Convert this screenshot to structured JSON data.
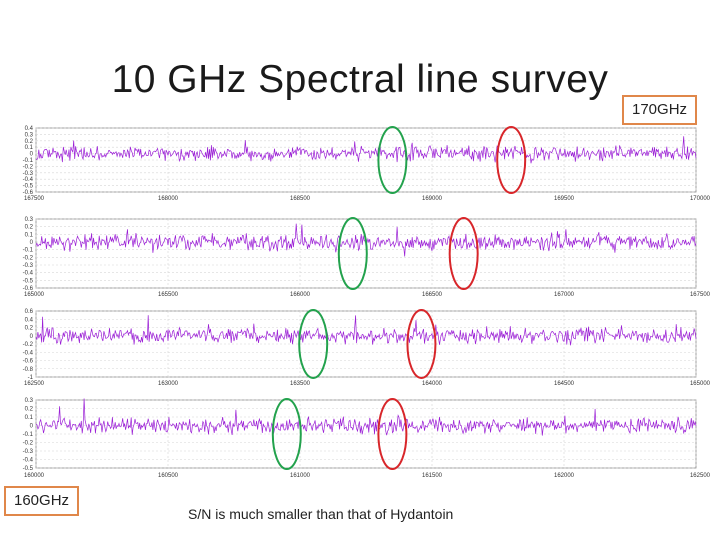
{
  "header": {
    "title": "10 GHz Spectral line survey"
  },
  "labels": {
    "top_right": "170GHz",
    "bottom_left": "160GHz"
  },
  "note": "S/N is much smaller than that of Hydantoin",
  "colors": {
    "trace": "#9b1fd6",
    "circle_green": "#23a24d",
    "circle_red": "#d8262a",
    "tag_border": "#e0874a"
  },
  "chart_data": [
    {
      "type": "line",
      "xlim": [
        167500,
        170000
      ],
      "x_ticks": [
        "167500",
        "168000",
        "168500",
        "169000",
        "169500",
        "170000"
      ],
      "ylim": [
        -0.6,
        0.4
      ],
      "y_ticks": [
        "0.4",
        "0.3",
        "0.2",
        "0.1",
        "0",
        "-0.1",
        "-0.2",
        "-0.3",
        "-0.4",
        "-0.5",
        "-0.6"
      ],
      "grid": true,
      "circles": [
        {
          "color": "green",
          "x": 168850
        },
        {
          "color": "red",
          "x": 169300
        }
      ]
    },
    {
      "type": "line",
      "xlim": [
        165000,
        167500
      ],
      "x_ticks": [
        "165000",
        "165500",
        "166000",
        "166500",
        "167000",
        "167500"
      ],
      "ylim": [
        -0.6,
        0.3
      ],
      "y_ticks": [
        "0.3",
        "0.2",
        "0.1",
        "0",
        "-0.1",
        "-0.2",
        "-0.3",
        "-0.4",
        "-0.5",
        "-0.6"
      ],
      "grid": true,
      "circles": [
        {
          "color": "green",
          "x": 166200
        },
        {
          "color": "red",
          "x": 166620
        }
      ]
    },
    {
      "type": "line",
      "xlim": [
        162500,
        165000
      ],
      "x_ticks": [
        "162500",
        "163000",
        "163500",
        "164000",
        "164500",
        "165000"
      ],
      "ylim": [
        -1,
        0.6
      ],
      "y_ticks": [
        "0.6",
        "0.4",
        "0.2",
        "0",
        "-0.2",
        "-0.4",
        "-0.6",
        "-0.8",
        "-1"
      ],
      "grid": true,
      "circles": [
        {
          "color": "green",
          "x": 163550
        },
        {
          "color": "red",
          "x": 163960
        }
      ]
    },
    {
      "type": "line",
      "xlim": [
        160000,
        162500
      ],
      "x_ticks": [
        "160000",
        "160500",
        "161000",
        "161500",
        "162000",
        "162500"
      ],
      "ylim": [
        -0.5,
        0.3
      ],
      "y_ticks": [
        "0.3",
        "0.2",
        "0.1",
        "0",
        "-0.1",
        "-0.2",
        "-0.3",
        "-0.4",
        "-0.5"
      ],
      "grid": true,
      "circles": [
        {
          "color": "green",
          "x": 160950
        },
        {
          "color": "red",
          "x": 161350
        }
      ]
    }
  ]
}
